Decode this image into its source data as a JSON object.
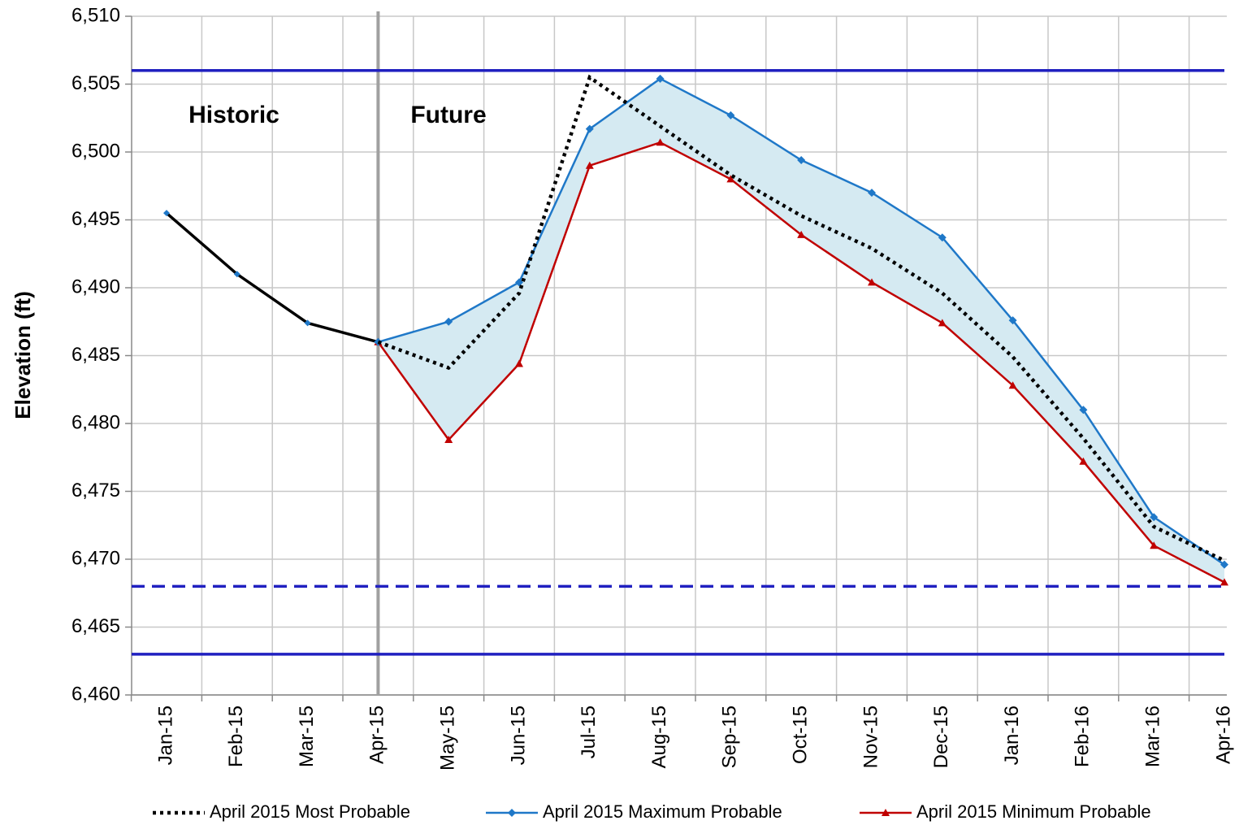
{
  "chart_data": {
    "type": "line",
    "y_label": "Elevation (ft)",
    "annotations": [
      "Historic",
      "Future"
    ],
    "categories": [
      "Jan-15",
      "Feb-15",
      "Mar-15",
      "Apr-15",
      "May-15",
      "Jun-15",
      "Jul-15",
      "Aug-15",
      "Sep-15",
      "Oct-15",
      "Nov-15",
      "Dec-15",
      "Jan-16",
      "Feb-16",
      "Mar-16",
      "Apr-16"
    ],
    "historic": {
      "color": "#000000",
      "values": [
        6495.5,
        6491,
        6487.4,
        6486,
        null,
        null,
        null,
        null,
        null,
        null,
        null,
        null,
        null,
        null,
        null,
        null
      ]
    },
    "series": [
      {
        "name": "April 2015 Most Probable",
        "color": "#000000",
        "style": "dotted",
        "values": [
          null,
          null,
          null,
          6486,
          6484.1,
          6489.6,
          6505.5,
          6501.9,
          6498.3,
          6495.3,
          6492.9,
          6489.6,
          6484.9,
          6478.9,
          6472.4,
          6469.9
        ]
      },
      {
        "name": "April 2015 Maximum Probable",
        "color": "#1f78c8",
        "marker": "diamond",
        "values": [
          null,
          null,
          null,
          6486,
          6487.5,
          6490.4,
          6501.7,
          6505.4,
          6502.7,
          6499.4,
          6497,
          6493.7,
          6487.6,
          6481,
          6473.1,
          6469.6
        ]
      },
      {
        "name": "April 2015 Minimum Probable",
        "color": "#c00000",
        "marker": "triangle",
        "values": [
          null,
          null,
          null,
          6486,
          6478.8,
          6484.4,
          6499,
          6500.7,
          6498,
          6493.9,
          6490.4,
          6487.4,
          6482.8,
          6477.2,
          6471,
          6468.3
        ]
      }
    ],
    "band_color": "#d5eaf2",
    "reference_lines": [
      {
        "value": 6506,
        "style": "solid",
        "color": "#2020c0"
      },
      {
        "value": 6468,
        "style": "dashed",
        "color": "#2020c0"
      },
      {
        "value": 6463,
        "style": "solid",
        "color": "#2020c0"
      }
    ],
    "ylim": [
      6460,
      6510
    ],
    "yticks": [
      {
        "value": 6460,
        "label": "6,460"
      },
      {
        "value": 6465,
        "label": "6,465"
      },
      {
        "value": 6470,
        "label": "6,470"
      },
      {
        "value": 6475,
        "label": "6,475"
      },
      {
        "value": 6480,
        "label": "6,480"
      },
      {
        "value": 6485,
        "label": "6,485"
      },
      {
        "value": 6490,
        "label": "6,490"
      },
      {
        "value": 6495,
        "label": "6,495"
      },
      {
        "value": 6500,
        "label": "6,500"
      },
      {
        "value": 6505,
        "label": "6,505"
      },
      {
        "value": 6510,
        "label": "6,510"
      }
    ],
    "grid": true,
    "legend": "bottom"
  }
}
